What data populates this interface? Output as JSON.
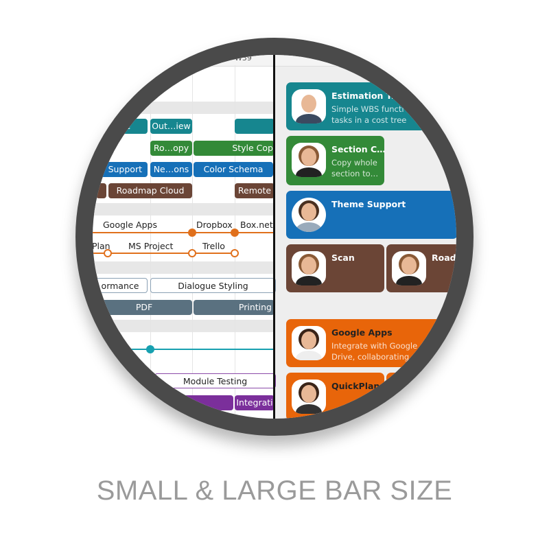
{
  "header": {
    "week": "W39"
  },
  "small_bars": {
    "rows": [
      [
        "ee",
        "Out…iew"
      ],
      [
        "Ro…opy",
        "Style Cop"
      ],
      [
        "Support",
        "Ne…ons",
        "Color Schema"
      ],
      [
        "Roadmap Cloud",
        "Remote"
      ],
      [
        "ormance",
        "Dialogue Styling"
      ],
      [
        "PDF",
        "Printing"
      ],
      [
        "Module Testing"
      ],
      [
        "Integrati"
      ]
    ]
  },
  "milestones": {
    "row1": [
      "Google Apps",
      "Dropbox",
      "Box.net"
    ],
    "row2": [
      "Plan",
      "MS Project",
      "Trello"
    ]
  },
  "large_bars": {
    "cards": [
      {
        "title": "Estimation Tre",
        "lines": [
          "Simple WBS functi",
          "tasks in a cost tree"
        ]
      },
      {
        "title": "Section C…",
        "lines": [
          "Copy whole",
          "section to…"
        ]
      },
      {
        "title": "Theme Support"
      },
      {
        "title": "Scan"
      },
      {
        "title": "Roadm"
      },
      {
        "title": "Google Apps",
        "lines": [
          "Integrate with Google A",
          "Drive, collaborating u"
        ]
      },
      {
        "title": "QuickPlan"
      }
    ]
  },
  "caption": "SMALL & LARGE BAR SIZE"
}
